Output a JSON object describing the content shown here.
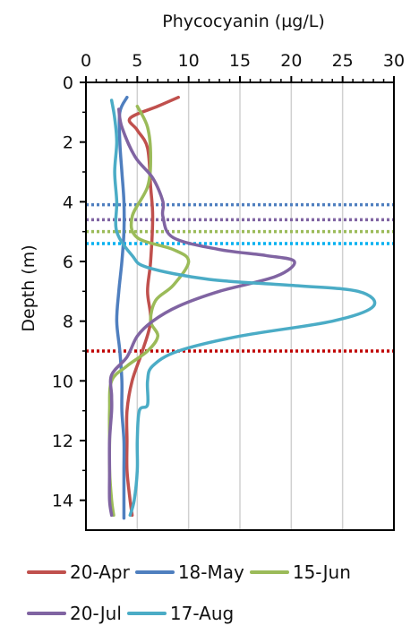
{
  "chart_data": {
    "type": "line",
    "title": "",
    "xlabel": "Phycocyanin (µg/L)",
    "ylabel": "Depth (m)",
    "x_axis_position": "top",
    "y_axis_inverted": true,
    "xlim": [
      0,
      30
    ],
    "ylim": [
      0,
      15
    ],
    "x_ticks": [
      "0",
      "5",
      "10",
      "15",
      "20",
      "25",
      "30"
    ],
    "y_ticks": [
      "0",
      "2",
      "4",
      "6",
      "8",
      "10",
      "12",
      "14"
    ],
    "grid": "vertical",
    "legend_position": "bottom",
    "series": [
      {
        "name": "20-Apr",
        "color": "#c0504d",
        "points": [
          [
            9.0,
            0.5
          ],
          [
            7.0,
            0.8
          ],
          [
            4.3,
            1.2
          ],
          [
            5.0,
            1.6
          ],
          [
            6.0,
            2.2
          ],
          [
            6.3,
            3.5
          ],
          [
            6.5,
            4.5
          ],
          [
            6.3,
            6.0
          ],
          [
            6.0,
            7.0
          ],
          [
            6.3,
            8.0
          ],
          [
            5.5,
            9.0
          ],
          [
            4.5,
            10.0
          ],
          [
            4.0,
            11.0
          ],
          [
            4.0,
            12.0
          ],
          [
            4.0,
            13.0
          ],
          [
            4.3,
            14.0
          ],
          [
            4.5,
            14.5
          ]
        ]
      },
      {
        "name": "18-May",
        "color": "#4f7fbf",
        "points": [
          [
            4.0,
            0.5
          ],
          [
            3.3,
            1.0
          ],
          [
            3.3,
            2.0
          ],
          [
            3.5,
            3.0
          ],
          [
            3.7,
            4.0
          ],
          [
            3.7,
            5.0
          ],
          [
            3.5,
            6.0
          ],
          [
            3.2,
            7.0
          ],
          [
            3.0,
            8.0
          ],
          [
            3.3,
            9.0
          ],
          [
            3.5,
            10.0
          ],
          [
            3.5,
            11.0
          ],
          [
            3.7,
            12.0
          ],
          [
            3.7,
            13.0
          ],
          [
            3.7,
            14.0
          ],
          [
            3.7,
            14.6
          ]
        ]
      },
      {
        "name": "15-Jun",
        "color": "#9bbb59",
        "points": [
          [
            5.0,
            0.8
          ],
          [
            6.0,
            1.5
          ],
          [
            6.3,
            2.5
          ],
          [
            6.0,
            3.5
          ],
          [
            4.5,
            4.5
          ],
          [
            5.0,
            5.2
          ],
          [
            8.5,
            5.6
          ],
          [
            10.0,
            6.0
          ],
          [
            8.5,
            6.8
          ],
          [
            6.8,
            7.3
          ],
          [
            6.3,
            8.0
          ],
          [
            7.0,
            8.5
          ],
          [
            6.0,
            9.0
          ],
          [
            4.0,
            9.5
          ],
          [
            2.5,
            10.0
          ],
          [
            2.3,
            11.0
          ],
          [
            2.3,
            12.0
          ],
          [
            2.3,
            13.0
          ],
          [
            2.5,
            14.0
          ],
          [
            2.7,
            14.5
          ]
        ]
      },
      {
        "name": "20-Jul",
        "color": "#8064a2",
        "points": [
          [
            3.2,
            0.9
          ],
          [
            3.5,
            1.5
          ],
          [
            4.8,
            2.5
          ],
          [
            6.5,
            3.2
          ],
          [
            7.5,
            4.0
          ],
          [
            7.5,
            4.5
          ],
          [
            8.5,
            5.2
          ],
          [
            13.0,
            5.6
          ],
          [
            17.5,
            5.8
          ],
          [
            20.3,
            6.0
          ],
          [
            18.5,
            6.5
          ],
          [
            13.0,
            7.0
          ],
          [
            9.0,
            7.5
          ],
          [
            6.5,
            8.0
          ],
          [
            5.0,
            8.5
          ],
          [
            4.0,
            9.2
          ],
          [
            2.5,
            9.8
          ],
          [
            2.5,
            10.5
          ],
          [
            2.5,
            11.0
          ],
          [
            2.3,
            12.0
          ],
          [
            2.3,
            13.0
          ],
          [
            2.3,
            14.0
          ],
          [
            2.5,
            14.5
          ]
        ]
      },
      {
        "name": "17-Aug",
        "color": "#4bacc6",
        "points": [
          [
            2.5,
            0.6
          ],
          [
            2.8,
            1.2
          ],
          [
            3.0,
            2.0
          ],
          [
            2.8,
            3.0
          ],
          [
            3.0,
            4.0
          ],
          [
            3.0,
            5.0
          ],
          [
            4.5,
            5.8
          ],
          [
            6.0,
            6.2
          ],
          [
            12.0,
            6.6
          ],
          [
            20.0,
            6.8
          ],
          [
            26.5,
            7.0
          ],
          [
            28.0,
            7.5
          ],
          [
            24.0,
            8.0
          ],
          [
            15.0,
            8.5
          ],
          [
            9.0,
            9.0
          ],
          [
            6.5,
            9.5
          ],
          [
            6.0,
            10.0
          ],
          [
            6.0,
            10.8
          ],
          [
            5.2,
            11.0
          ],
          [
            5.0,
            12.0
          ],
          [
            5.0,
            13.0
          ],
          [
            4.7,
            14.0
          ],
          [
            4.3,
            14.5
          ]
        ]
      }
    ],
    "reference_lines": [
      {
        "depth": 4.1,
        "color": "#4f7fbf"
      },
      {
        "depth": 4.6,
        "color": "#8064a2"
      },
      {
        "depth": 5.0,
        "color": "#9bbb59"
      },
      {
        "depth": 5.4,
        "color": "#00b0f0"
      },
      {
        "depth": 9.0,
        "color": "#c00000"
      }
    ]
  }
}
